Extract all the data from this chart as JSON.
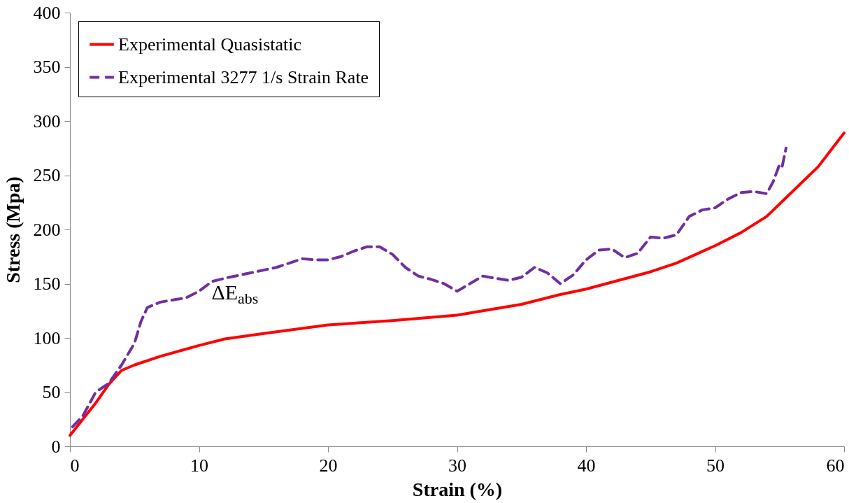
{
  "chart_data": {
    "type": "line",
    "xlabel": "Strain (%)",
    "ylabel": "Stress (Mpa)",
    "xlim": [
      0,
      60
    ],
    "xticks": [
      0,
      10,
      20,
      30,
      40,
      50,
      60
    ],
    "ylim": [
      0,
      400
    ],
    "yticks": [
      0,
      50,
      100,
      150,
      200,
      250,
      300,
      350,
      400
    ],
    "grid": false,
    "legend": "top left",
    "annotations": [
      "ΔE$_{abs}$"
    ],
    "series": [
      {
        "name": "Experimental Quasistatic",
        "color": "#ff0000",
        "line_style": "solid",
        "x": [
          0,
          1,
          2,
          3,
          4,
          5,
          7,
          10,
          12,
          15,
          20,
          25,
          30,
          32,
          35,
          38,
          40,
          45,
          47,
          50,
          52,
          54,
          56,
          58,
          60
        ],
        "values": [
          10,
          25,
          40,
          57,
          70,
          75,
          83,
          93,
          99,
          104,
          112,
          116,
          121,
          125,
          131,
          140,
          145,
          161,
          169,
          185,
          197,
          212,
          235,
          258,
          289
        ]
      },
      {
        "name": "Experimental 3277 1/s Strain Rate",
        "color": "#7030a0",
        "line_style": "dashed",
        "x": [
          0.2,
          1,
          2,
          3,
          4,
          5,
          5.5,
          6,
          7,
          9,
          10,
          11,
          12,
          14,
          16,
          18,
          19,
          20,
          21,
          22,
          23,
          24,
          25,
          26,
          27,
          28,
          29,
          30,
          31,
          32,
          33,
          34,
          35,
          36,
          37,
          38,
          39,
          40,
          41,
          42,
          43,
          44,
          45,
          46,
          47,
          48,
          49,
          50,
          51,
          52,
          53,
          54,
          54.5,
          55,
          55.2,
          55.5
        ],
        "values": [
          18,
          28,
          50,
          58,
          75,
          95,
          115,
          128,
          133,
          137,
          143,
          152,
          155,
          160,
          165,
          173,
          172,
          172,
          175,
          180,
          184,
          184,
          177,
          165,
          157,
          154,
          150,
          143,
          150,
          157,
          155,
          153,
          156,
          165,
          160,
          150,
          158,
          172,
          181,
          182,
          174,
          178,
          193,
          192,
          195,
          212,
          218,
          220,
          228,
          234,
          235,
          233,
          244,
          260,
          258,
          275
        ]
      }
    ]
  }
}
